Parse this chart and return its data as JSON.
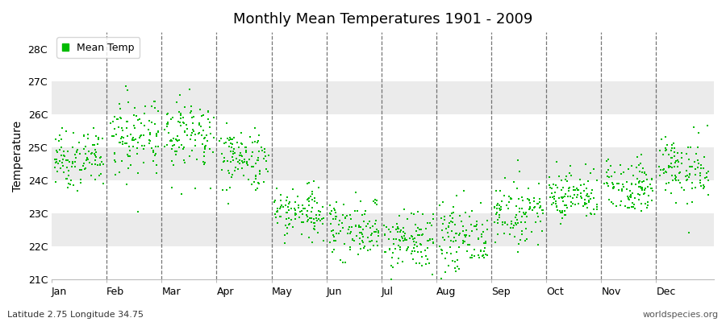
{
  "title": "Monthly Mean Temperatures 1901 - 2009",
  "ylabel": "Temperature",
  "xlabel_labels": [
    "Jan",
    "Feb",
    "Mar",
    "Apr",
    "May",
    "Jun",
    "Jul",
    "Aug",
    "Sep",
    "Oct",
    "Nov",
    "Dec"
  ],
  "subtitle": "Latitude 2.75 Longitude 34.75",
  "watermark": "worldspecies.org",
  "legend_label": "Mean Temp",
  "dot_color": "#00bb00",
  "dot_size": 3,
  "ylim": [
    21.0,
    28.5
  ],
  "yticks": [
    21,
    22,
    23,
    24,
    25,
    26,
    27,
    28
  ],
  "ytick_labels": [
    "21C",
    "22C",
    "23C",
    "24C",
    "25C",
    "26C",
    "27C",
    "28C"
  ],
  "background_color": "#ffffff",
  "band_color": "#ebebeb",
  "n_years": 109,
  "monthly_means": [
    24.65,
    25.35,
    25.45,
    24.65,
    23.05,
    22.55,
    22.15,
    22.25,
    23.05,
    23.55,
    23.85,
    24.35
  ],
  "monthly_stds": [
    0.42,
    0.65,
    0.6,
    0.48,
    0.45,
    0.45,
    0.45,
    0.52,
    0.42,
    0.38,
    0.4,
    0.5
  ],
  "seed": 7
}
